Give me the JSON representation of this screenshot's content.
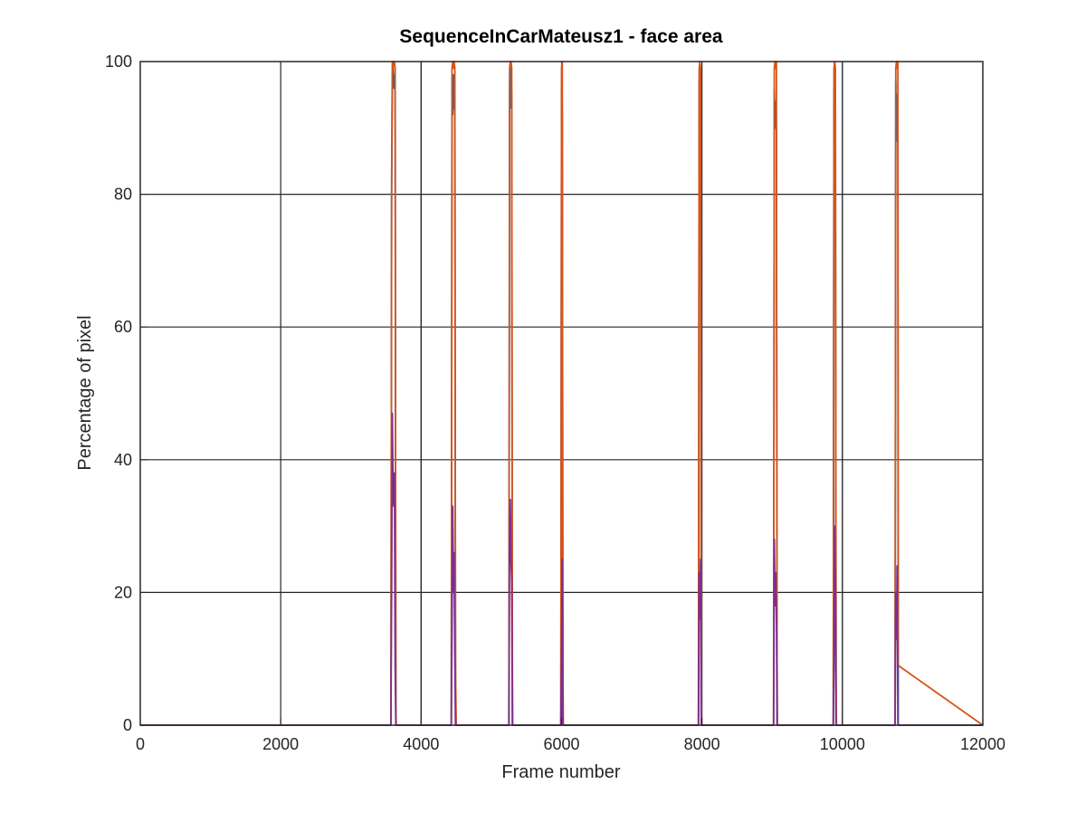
{
  "chart_data": {
    "type": "line",
    "title": "SequenceInCarMateusz1 - face area",
    "xlabel": "Frame number",
    "ylabel": "Percentage of pixel",
    "xlim": [
      0,
      12000
    ],
    "ylim": [
      0,
      100
    ],
    "xticks": [
      "0",
      "2000",
      "4000",
      "6000",
      "8000",
      "10000",
      "12000"
    ],
    "yticks": [
      "0",
      "20",
      "40",
      "60",
      "80",
      "100"
    ],
    "grid": true,
    "legend": "none",
    "extra_vlines": [
      4000,
      10000
    ],
    "series": [
      {
        "color": "#0072bd",
        "x": [
          0,
          3570,
          3580,
          3590,
          3600,
          3610,
          3620,
          3630,
          3640,
          3645,
          4430,
          4440,
          4450,
          4460,
          4470,
          4480,
          4490,
          4500,
          4505,
          5250,
          5260,
          5270,
          5280,
          5290,
          5300,
          5305,
          5990,
          6000,
          6010,
          6020,
          6025,
          7950,
          7960,
          7970,
          7980,
          7990,
          7995,
          9020,
          9030,
          9040,
          9050,
          9060,
          9070,
          9075,
          9870,
          9880,
          9890,
          9900,
          9910,
          9915,
          10750,
          10760,
          10770,
          10780,
          10790,
          10795,
          12000
        ],
        "y": [
          0,
          0,
          80,
          97,
          99,
          96,
          98,
          95,
          0,
          0,
          0,
          97,
          92,
          98,
          93,
          97,
          0,
          0,
          0,
          0,
          97,
          93,
          99,
          95,
          0,
          0,
          0,
          96,
          92,
          0,
          0,
          0,
          97,
          94,
          98,
          0,
          0,
          0,
          96,
          90,
          94,
          89,
          0,
          0,
          0,
          96,
          88,
          94,
          0,
          0,
          0,
          97,
          88,
          95,
          91,
          0,
          0
        ]
      },
      {
        "color": "#d95319",
        "x": [
          0,
          3570,
          3580,
          3590,
          3600,
          3610,
          3620,
          3630,
          3640,
          3645,
          4430,
          4440,
          4450,
          4460,
          4470,
          4480,
          4490,
          4500,
          4505,
          5250,
          5260,
          5270,
          5280,
          5290,
          5300,
          5305,
          5990,
          6000,
          6010,
          6020,
          6025,
          7950,
          7960,
          7970,
          7980,
          7990,
          7995,
          9020,
          9030,
          9040,
          9050,
          9060,
          9070,
          9075,
          9870,
          9880,
          9890,
          9900,
          9910,
          9915,
          10750,
          10760,
          10770,
          10780,
          10790,
          10795,
          12000
        ],
        "y": [
          0,
          0,
          83,
          100,
          99,
          100,
          100,
          99,
          3,
          0,
          0,
          99,
          100,
          99,
          100,
          99,
          8,
          0,
          0,
          0,
          99,
          100,
          100,
          99,
          7,
          0,
          0,
          99,
          100,
          8,
          0,
          0,
          99,
          100,
          99,
          5,
          0,
          0,
          99,
          100,
          99,
          100,
          10,
          0,
          0,
          99,
          100,
          99,
          9,
          0,
          0,
          99,
          100,
          99,
          100,
          9,
          0
        ]
      },
      {
        "color": "#7e2f8e",
        "x": [
          0,
          3570,
          3580,
          3590,
          3600,
          3610,
          3620,
          3630,
          3640,
          3645,
          4430,
          4440,
          4450,
          4460,
          4470,
          4480,
          4490,
          4500,
          4505,
          5250,
          5260,
          5270,
          5280,
          5290,
          5300,
          5305,
          5990,
          6000,
          6010,
          6020,
          6025,
          7950,
          7960,
          7970,
          7980,
          7990,
          7995,
          9020,
          9030,
          9040,
          9050,
          9060,
          9070,
          9075,
          9870,
          9880,
          9890,
          9900,
          9910,
          9915,
          10750,
          10760,
          10770,
          10780,
          10790,
          10795,
          12000
        ],
        "y": [
          0,
          0,
          20,
          47,
          36,
          33,
          38,
          9,
          0,
          0,
          0,
          15,
          33,
          20,
          26,
          10,
          0,
          0,
          0,
          0,
          28,
          34,
          25,
          22,
          0,
          0,
          0,
          11,
          25,
          0,
          0,
          0,
          23,
          16,
          25,
          0,
          0,
          0,
          28,
          18,
          23,
          16,
          0,
          0,
          0,
          9,
          30,
          22,
          0,
          0,
          0,
          20,
          13,
          24,
          0,
          0,
          0
        ]
      }
    ]
  }
}
